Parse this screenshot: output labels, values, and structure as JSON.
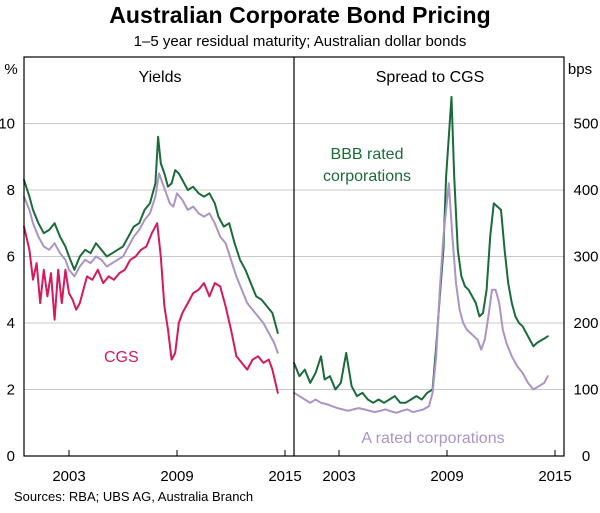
{
  "title": "Australian Corporate Bond Pricing",
  "subtitle": "1–5 year residual maturity; Australian dollar bonds",
  "source": "Sources:   RBA; UBS AG, Australia Branch",
  "colors": {
    "bbb": "#1b6b3a",
    "a": "#ab94c6",
    "cgs": "#d6185d",
    "frame": "#000000"
  },
  "chart_data": [
    {
      "type": "line",
      "panel": "left",
      "title": "Yields",
      "ylabel": "%",
      "ylim": [
        0,
        12
      ],
      "yticks": [
        0,
        2,
        4,
        6,
        8,
        10
      ],
      "xlim": [
        2000.5,
        2015.5
      ],
      "xticks": [
        2003,
        2009,
        2015
      ],
      "series": [
        {
          "name": "BBB rated corporations",
          "color": "#1b6b3a",
          "x": [
            2000.5,
            2000.8,
            2001.0,
            2001.3,
            2001.6,
            2001.9,
            2002.2,
            2002.5,
            2002.8,
            2003.0,
            2003.3,
            2003.6,
            2003.9,
            2004.2,
            2004.5,
            2004.8,
            2005.1,
            2005.4,
            2005.7,
            2006.0,
            2006.3,
            2006.6,
            2006.9,
            2007.2,
            2007.5,
            2007.8,
            2007.95,
            2008.1,
            2008.3,
            2008.5,
            2008.7,
            2008.9,
            2009.1,
            2009.3,
            2009.6,
            2009.9,
            2010.2,
            2010.5,
            2010.8,
            2011.1,
            2011.3,
            2011.6,
            2011.9,
            2012.2,
            2012.5,
            2012.8,
            2013.1,
            2013.4,
            2013.7,
            2014.0,
            2014.3,
            2014.6
          ],
          "y": [
            8.3,
            7.8,
            7.4,
            7.0,
            6.7,
            6.8,
            7.0,
            6.6,
            6.3,
            6.0,
            5.6,
            6.0,
            6.2,
            6.1,
            6.4,
            6.2,
            6.0,
            6.1,
            6.2,
            6.3,
            6.6,
            6.9,
            7.0,
            7.4,
            7.6,
            8.2,
            9.6,
            8.8,
            8.5,
            8.1,
            8.2,
            8.6,
            8.5,
            8.3,
            8.0,
            8.1,
            7.9,
            7.8,
            7.9,
            7.6,
            7.2,
            6.9,
            7.0,
            6.4,
            5.9,
            5.6,
            5.2,
            4.8,
            4.7,
            4.5,
            4.3,
            3.7
          ]
        },
        {
          "name": "A rated corporations",
          "color": "#ab94c6",
          "x": [
            2000.5,
            2000.8,
            2001.0,
            2001.3,
            2001.6,
            2001.9,
            2002.2,
            2002.5,
            2002.8,
            2003.0,
            2003.3,
            2003.6,
            2003.9,
            2004.2,
            2004.5,
            2004.8,
            2005.1,
            2005.4,
            2005.7,
            2006.0,
            2006.3,
            2006.6,
            2006.9,
            2007.2,
            2007.5,
            2007.8,
            2008.0,
            2008.2,
            2008.4,
            2008.6,
            2008.8,
            2009.0,
            2009.3,
            2009.6,
            2009.9,
            2010.2,
            2010.5,
            2010.8,
            2011.1,
            2011.4,
            2011.7,
            2012.0,
            2012.3,
            2012.6,
            2012.9,
            2013.2,
            2013.5,
            2013.8,
            2014.1,
            2014.4,
            2014.6
          ],
          "y": [
            7.8,
            7.4,
            7.0,
            6.6,
            6.3,
            6.2,
            6.4,
            6.1,
            5.9,
            5.6,
            5.4,
            5.7,
            5.9,
            5.8,
            6.0,
            5.9,
            5.7,
            5.8,
            5.9,
            6.0,
            6.3,
            6.6,
            6.8,
            7.1,
            7.3,
            7.8,
            8.5,
            8.2,
            7.9,
            7.6,
            7.5,
            7.9,
            7.7,
            7.4,
            7.5,
            7.3,
            7.2,
            7.3,
            7.0,
            6.6,
            6.4,
            5.9,
            5.4,
            5.0,
            4.6,
            4.4,
            4.2,
            4.0,
            3.7,
            3.4,
            3.1
          ]
        },
        {
          "name": "CGS",
          "color": "#d6185d",
          "x": [
            2000.5,
            2000.8,
            2001.0,
            2001.2,
            2001.4,
            2001.6,
            2001.8,
            2002.0,
            2002.2,
            2002.4,
            2002.6,
            2002.8,
            2003.0,
            2003.2,
            2003.4,
            2003.6,
            2003.8,
            2004.0,
            2004.3,
            2004.6,
            2004.9,
            2005.2,
            2005.5,
            2005.8,
            2006.1,
            2006.4,
            2006.7,
            2007.0,
            2007.3,
            2007.6,
            2007.9,
            2008.1,
            2008.3,
            2008.5,
            2008.7,
            2008.9,
            2009.1,
            2009.3,
            2009.6,
            2009.9,
            2010.2,
            2010.5,
            2010.8,
            2011.1,
            2011.4,
            2011.7,
            2012.0,
            2012.3,
            2012.6,
            2012.9,
            2013.2,
            2013.5,
            2013.8,
            2014.1,
            2014.3,
            2014.6
          ],
          "y": [
            6.9,
            6.2,
            5.3,
            5.8,
            4.6,
            5.6,
            4.8,
            5.5,
            4.1,
            5.6,
            4.6,
            5.6,
            4.9,
            4.7,
            4.4,
            4.6,
            5.0,
            5.4,
            5.3,
            5.6,
            5.2,
            5.4,
            5.3,
            5.5,
            5.6,
            5.9,
            6.0,
            6.2,
            6.3,
            6.7,
            7.0,
            6.0,
            4.5,
            3.8,
            2.9,
            3.1,
            4.0,
            4.3,
            4.6,
            4.9,
            5.0,
            5.2,
            4.8,
            5.2,
            5.1,
            4.5,
            3.8,
            3.0,
            2.8,
            2.6,
            2.9,
            3.0,
            2.8,
            2.9,
            2.6,
            1.9
          ]
        }
      ],
      "annotations": [
        {
          "text": "CGS",
          "color": "#d6185d"
        }
      ]
    },
    {
      "type": "line",
      "panel": "right",
      "title": "Spread to CGS",
      "ylabel": "bps",
      "ylim": [
        0,
        600
      ],
      "yticks": [
        0,
        100,
        200,
        300,
        400,
        500
      ],
      "xlim": [
        2000.5,
        2015.5
      ],
      "xticks": [
        2003,
        2009,
        2015
      ],
      "series": [
        {
          "name": "BBB rated corporations",
          "color": "#1b6b3a",
          "x": [
            2000.5,
            2000.8,
            2001.1,
            2001.4,
            2001.7,
            2002.0,
            2002.2,
            2002.5,
            2002.8,
            2003.1,
            2003.4,
            2003.7,
            2004.0,
            2004.3,
            2004.6,
            2004.9,
            2005.2,
            2005.5,
            2005.8,
            2006.1,
            2006.4,
            2006.7,
            2007.0,
            2007.3,
            2007.6,
            2007.9,
            2008.2,
            2008.4,
            2008.6,
            2008.8,
            2008.95,
            2009.1,
            2009.25,
            2009.4,
            2009.6,
            2009.8,
            2010.0,
            2010.2,
            2010.4,
            2010.6,
            2010.8,
            2011.0,
            2011.2,
            2011.4,
            2011.6,
            2011.8,
            2012.0,
            2012.2,
            2012.4,
            2012.6,
            2012.8,
            2013.0,
            2013.2,
            2013.4,
            2013.6,
            2013.8,
            2014.0,
            2014.3,
            2014.6
          ],
          "y": [
            140,
            120,
            130,
            110,
            125,
            150,
            115,
            120,
            100,
            110,
            155,
            105,
            90,
            95,
            85,
            80,
            85,
            80,
            85,
            90,
            80,
            80,
            85,
            90,
            85,
            95,
            100,
            165,
            240,
            310,
            420,
            480,
            540,
            420,
            310,
            270,
            255,
            250,
            240,
            230,
            210,
            215,
            250,
            330,
            380,
            375,
            370,
            310,
            260,
            230,
            210,
            200,
            195,
            185,
            175,
            165,
            170,
            175,
            180
          ]
        },
        {
          "name": "A rated corporations",
          "color": "#ab94c6",
          "x": [
            2000.5,
            2000.8,
            2001.1,
            2001.4,
            2001.7,
            2002.0,
            2002.3,
            2002.6,
            2002.9,
            2003.2,
            2003.5,
            2003.8,
            2004.1,
            2004.4,
            2004.7,
            2005.0,
            2005.3,
            2005.6,
            2005.9,
            2006.2,
            2006.5,
            2006.8,
            2007.1,
            2007.4,
            2007.7,
            2008.0,
            2008.2,
            2008.4,
            2008.6,
            2008.8,
            2008.95,
            2009.1,
            2009.3,
            2009.5,
            2009.7,
            2009.9,
            2010.1,
            2010.3,
            2010.5,
            2010.7,
            2010.9,
            2011.1,
            2011.3,
            2011.5,
            2011.7,
            2011.9,
            2012.1,
            2012.3,
            2012.6,
            2012.9,
            2013.2,
            2013.5,
            2013.8,
            2014.1,
            2014.4,
            2014.6
          ],
          "y": [
            95,
            90,
            85,
            80,
            85,
            80,
            78,
            75,
            72,
            70,
            68,
            70,
            72,
            70,
            68,
            66,
            68,
            70,
            67,
            65,
            68,
            70,
            66,
            68,
            70,
            75,
            95,
            150,
            250,
            330,
            370,
            410,
            330,
            260,
            220,
            200,
            190,
            185,
            180,
            175,
            160,
            175,
            210,
            250,
            250,
            230,
            190,
            170,
            150,
            135,
            125,
            110,
            100,
            105,
            110,
            120
          ]
        }
      ],
      "annotations": [
        {
          "text": "BBB rated",
          "color": "#1b6b3a"
        },
        {
          "text": "corporations",
          "color": "#1b6b3a"
        },
        {
          "text": "A rated corporations",
          "color": "#ab94c6"
        }
      ]
    }
  ]
}
